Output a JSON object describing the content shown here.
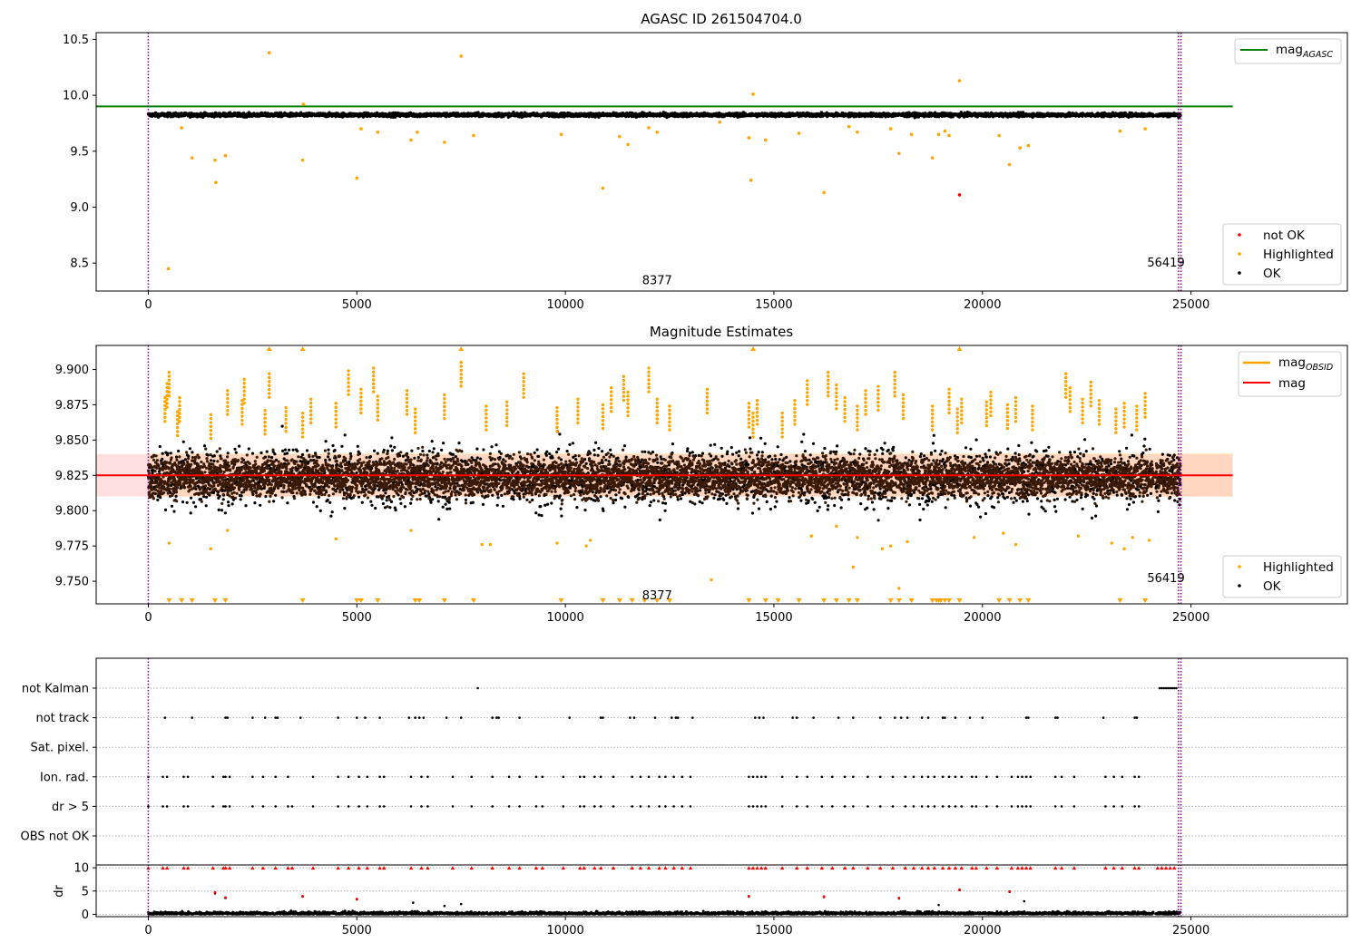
{
  "chart_data": [
    {
      "type": "scatter",
      "title": "AGASC ID 261504704.0",
      "xlabel": "",
      "ylabel": "",
      "xlim": [
        -1250,
        28750
      ],
      "ylim": [
        8.25,
        10.56
      ],
      "xticks": [
        0,
        5000,
        10000,
        15000,
        20000,
        25000
      ],
      "xtick_labels": [
        "0",
        "5000",
        "10000",
        "15000",
        "20000",
        "25000"
      ],
      "yticks": [
        8.5,
        9.0,
        9.5,
        10.0,
        10.5
      ],
      "ytick_labels": [
        "8.5",
        "9.0",
        "9.5",
        "10.0",
        "10.5"
      ],
      "grid": false,
      "legend_upper": {
        "position": "top-right",
        "entries": [
          {
            "label_main": "mag",
            "label_sub": "AGASC",
            "color": "#008000",
            "style": "line"
          }
        ]
      },
      "legend_lower": {
        "position": "bottom-right",
        "entries": [
          {
            "label": "not OK",
            "color": "#ff0000",
            "style": "dot"
          },
          {
            "label": "Highlighted",
            "color": "#ffa500",
            "style": "dot"
          },
          {
            "label": "OK",
            "color": "#000000",
            "style": "dot"
          }
        ]
      },
      "annotations": [
        {
          "text": "8377",
          "x": 12200,
          "y": 8.35
        },
        {
          "text": "56419",
          "x": 24400,
          "y": 8.51
        }
      ],
      "vlines": [
        {
          "x": 0,
          "color": "#800080",
          "style": "dotted"
        },
        {
          "x": 24700,
          "color": "#800080",
          "style": "dotted"
        },
        {
          "x": 24760,
          "color": "#800080",
          "style": "dotted"
        }
      ],
      "reference_line": {
        "name": "mag AGASC",
        "value": 9.9,
        "x_range": [
          -1250,
          26000
        ],
        "color": "#008000"
      },
      "ok_band": {
        "center": 9.825,
        "spread": 0.018,
        "x_ranges": [
          [
            0,
            24100
          ],
          [
            24150,
            24750
          ]
        ]
      },
      "highlighted_points": {
        "x": [
          480,
          800,
          1050,
          1600,
          1620,
          1850,
          2900,
          3700,
          3720,
          5000,
          5100,
          5500,
          6300,
          6450,
          7100,
          7500,
          7800,
          9900,
          10900,
          11300,
          11500,
          12000,
          12200,
          13700,
          14400,
          14450,
          14500,
          14800,
          15600,
          16200,
          16800,
          17000,
          17800,
          18000,
          18300,
          18800,
          18950,
          19100,
          19200,
          19450,
          20400,
          20650,
          20900,
          21100,
          23300,
          23900
        ],
        "y": [
          8.45,
          9.71,
          9.44,
          9.42,
          9.22,
          9.46,
          10.38,
          9.42,
          9.92,
          9.26,
          9.7,
          9.67,
          9.6,
          9.67,
          9.58,
          10.35,
          9.64,
          9.65,
          9.17,
          9.63,
          9.56,
          9.71,
          9.67,
          9.76,
          9.62,
          9.24,
          10.01,
          9.6,
          9.66,
          9.13,
          9.72,
          9.67,
          9.7,
          9.48,
          9.65,
          9.44,
          9.65,
          9.68,
          9.64,
          10.13,
          9.64,
          9.38,
          9.53,
          9.55,
          9.68,
          9.7
        ]
      },
      "not_ok_points": {
        "x": [
          19450
        ],
        "y": [
          9.11
        ]
      }
    },
    {
      "type": "scatter",
      "title": "Magnitude Estimates",
      "xlabel": "",
      "ylabel": "",
      "xlim": [
        -1250,
        28750
      ],
      "ylim": [
        9.734,
        9.917
      ],
      "xticks": [
        0,
        5000,
        10000,
        15000,
        20000,
        25000
      ],
      "xtick_labels": [
        "0",
        "5000",
        "10000",
        "15000",
        "20000",
        "25000"
      ],
      "yticks": [
        9.75,
        9.775,
        9.8,
        9.825,
        9.85,
        9.875,
        9.9
      ],
      "ytick_labels": [
        "9.750",
        "9.775",
        "9.800",
        "9.825",
        "9.850",
        "9.875",
        "9.900"
      ],
      "grid": false,
      "legend_upper": {
        "position": "top-right",
        "entries": [
          {
            "label_main": "mag",
            "label_sub": "OBSID",
            "color": "#ffa500",
            "style": "line"
          },
          {
            "label_main": "mag",
            "label_sub": "",
            "color": "#ff0000",
            "style": "line"
          }
        ]
      },
      "legend_lower": {
        "position": "bottom-right",
        "entries": [
          {
            "label": "Highlighted",
            "color": "#ffa500",
            "style": "dot"
          },
          {
            "label": "OK",
            "color": "#000000",
            "style": "dot"
          }
        ]
      },
      "annotations": [
        {
          "text": "8377",
          "x": 12200,
          "y": 9.7405
        },
        {
          "text": "56419",
          "x": 24400,
          "y": 9.7525
        }
      ],
      "vlines": [
        {
          "x": 0,
          "color": "#800080",
          "style": "dotted"
        },
        {
          "x": 24700,
          "color": "#800080",
          "style": "dotted"
        },
        {
          "x": 24760,
          "color": "#800080",
          "style": "dotted"
        }
      ],
      "mag_line": {
        "value": 9.825,
        "x_range": [
          -1250,
          26000
        ],
        "color": "#ff0000"
      },
      "mag_band": {
        "lo": 9.81,
        "hi": 9.84,
        "x_range": [
          -1250,
          26000
        ]
      },
      "obsid_band": {
        "lo": 9.81,
        "hi": 9.841,
        "x_range": [
          0,
          26000
        ]
      },
      "dense_band": {
        "center": 9.824,
        "half_width": 0.0155,
        "color": "#3a1a06",
        "x_ranges": [
          [
            0,
            24100
          ],
          [
            24150,
            24750
          ]
        ]
      },
      "scatter_spread": {
        "outer_lo": 9.79,
        "outer_hi": 9.866
      },
      "highlighted_upper_x": [
        400,
        450,
        500,
        700,
        750,
        1500,
        1900,
        2250,
        2300,
        2800,
        2900,
        3300,
        3700,
        3900,
        4500,
        4800,
        5100,
        5400,
        5500,
        6200,
        6400,
        7100,
        7500,
        8100,
        8600,
        9000,
        9800,
        10300,
        10900,
        11100,
        11400,
        11500,
        12000,
        12200,
        12500,
        13400,
        14400,
        14500,
        14600,
        15200,
        15500,
        15800,
        16300,
        16500,
        16700,
        17000,
        17200,
        17500,
        17900,
        18100,
        18800,
        19200,
        19400,
        19500,
        20100,
        20200,
        20600,
        20800,
        21200,
        22000,
        22100,
        22400,
        22600,
        22800,
        23200,
        23400,
        23700,
        23900
      ],
      "highlighted_upper_y": [
        9.88,
        9.89,
        9.898,
        9.87,
        9.88,
        9.868,
        9.885,
        9.878,
        9.893,
        9.871,
        9.897,
        9.873,
        9.869,
        9.879,
        9.876,
        9.899,
        9.886,
        9.901,
        9.881,
        9.885,
        9.872,
        9.882,
        9.905,
        9.874,
        9.877,
        9.897,
        9.873,
        9.879,
        9.875,
        9.887,
        9.895,
        9.884,
        9.901,
        9.879,
        9.874,
        9.886,
        9.876,
        9.869,
        9.878,
        9.869,
        9.878,
        9.892,
        9.898,
        9.889,
        9.88,
        9.874,
        9.885,
        9.888,
        9.898,
        9.882,
        9.874,
        9.886,
        9.872,
        9.879,
        9.877,
        9.884,
        9.875,
        9.88,
        9.874,
        9.897,
        9.887,
        9.879,
        9.891,
        9.878,
        9.872,
        9.876,
        9.874,
        9.883
      ],
      "highlighted_lower_x": [
        500,
        1500,
        1900,
        4500,
        6300,
        8000,
        8200,
        9800,
        10500,
        10600,
        13500,
        15900,
        16500,
        16900,
        17000,
        17600,
        17800,
        18000,
        18200,
        19800,
        20500,
        20800,
        22300,
        23100,
        23400,
        23600,
        24000
      ],
      "highlighted_lower_y": [
        9.777,
        9.773,
        9.786,
        9.78,
        9.786,
        9.776,
        9.776,
        9.777,
        9.775,
        9.779,
        9.751,
        9.782,
        9.789,
        9.76,
        9.781,
        9.773,
        9.775,
        9.745,
        9.778,
        9.781,
        9.784,
        9.776,
        9.782,
        9.777,
        9.773,
        9.781,
        9.779
      ],
      "clipped_top_x": [
        2900,
        3700,
        7500,
        14500,
        19450
      ],
      "clipped_bottom_x": [
        500,
        800,
        1050,
        1600,
        1850,
        3700,
        5000,
        5100,
        5500,
        6400,
        6500,
        7100,
        7800,
        9900,
        10900,
        11300,
        11600,
        11900,
        12200,
        12500,
        14400,
        14800,
        15100,
        15600,
        16200,
        16500,
        16800,
        17000,
        17800,
        18000,
        18300,
        18800,
        18900,
        18950,
        19000,
        19100,
        19200,
        19450,
        20400,
        20650,
        20900,
        21100,
        23300,
        23900
      ]
    },
    {
      "type": "scatter",
      "title": "",
      "xlabel": "",
      "ylabel": "dr",
      "xlim": [
        -1250,
        28750
      ],
      "xticks": [
        0,
        5000,
        10000,
        15000,
        20000,
        25000
      ],
      "xtick_labels": [
        "0",
        "5000",
        "10000",
        "15000",
        "20000",
        "25000"
      ],
      "flag_rows": [
        "not Kalman",
        "not track",
        "Sat. pixel.",
        "Ion. rad.",
        "dr > 5",
        "OBS not OK"
      ],
      "dr_ylim": [
        -0.5,
        10.6
      ],
      "dr_yticks": [
        0,
        5,
        10
      ],
      "dr_ytick_labels": [
        "0",
        "5",
        "10"
      ],
      "grid": "horizontal dotted",
      "vlines": [
        {
          "x": 0,
          "color": "#800080",
          "style": "dotted"
        },
        {
          "x": 24700,
          "color": "#800080",
          "style": "dotted"
        },
        {
          "x": 24760,
          "color": "#800080",
          "style": "dotted"
        }
      ],
      "not_kalman_x": [
        7900,
        24250,
        24300,
        24350,
        24400,
        24450,
        24500,
        24550,
        24600,
        24650
      ],
      "not_track_x": [
        400,
        1050,
        1850,
        1900,
        2500,
        2800,
        3050,
        3100,
        3650,
        4550,
        5000,
        5200,
        5550,
        6250,
        6400,
        6500,
        6600,
        7150,
        7500,
        8250,
        8350,
        8400,
        8900,
        10100,
        10850,
        10900,
        11550,
        11650,
        12150,
        12550,
        12650,
        12700,
        13050,
        14550,
        14650,
        14750,
        15450,
        15550,
        15950,
        16550,
        16900,
        17550,
        17900,
        18050,
        18200,
        18550,
        18700,
        19050,
        19100,
        19350,
        19700,
        20000,
        21050,
        21100,
        21750,
        21800,
        22900,
        23650,
        23700
      ],
      "ion_rad_x": [
        0,
        350,
        450,
        850,
        950,
        1550,
        1800,
        1850,
        1950,
        2500,
        2750,
        3050,
        3350,
        3950,
        4550,
        4800,
        5050,
        5250,
        5550,
        5650,
        6300,
        6550,
        6700,
        7300,
        7750,
        8250,
        8650,
        8900,
        9300,
        9450,
        9950,
        10350,
        10450,
        10700,
        10850,
        11150,
        11600,
        11800,
        12000,
        12250,
        12400,
        12600,
        12800,
        13000,
        14400,
        14500,
        14600,
        14700,
        14800,
        15200,
        15550,
        15800,
        16150,
        16400,
        16700,
        16900,
        17250,
        17550,
        17850,
        18150,
        18350,
        18550,
        18700,
        18850,
        19050,
        19200,
        19350,
        19500,
        19750,
        19850,
        20100,
        20350,
        20700,
        20850,
        20950,
        21050,
        21150,
        21750,
        21900,
        22200,
        22950,
        23150,
        23350,
        23650,
        23750
      ],
      "dr5_x": [
        0,
        350,
        450,
        850,
        950,
        1550,
        1800,
        1850,
        1950,
        2500,
        2750,
        3050,
        3350,
        3450,
        3950,
        4550,
        4800,
        5050,
        5250,
        5550,
        5650,
        6300,
        6550,
        6700,
        7300,
        7750,
        8250,
        8650,
        8900,
        9300,
        9450,
        9950,
        10350,
        10450,
        10700,
        10850,
        11150,
        11600,
        11800,
        12000,
        12250,
        12400,
        12600,
        12800,
        13000,
        14400,
        14500,
        14600,
        14700,
        14800,
        15200,
        15550,
        15800,
        16150,
        16400,
        16700,
        16900,
        17250,
        17550,
        17850,
        18150,
        18350,
        18550,
        18700,
        18850,
        19050,
        19200,
        19350,
        19500,
        19750,
        19850,
        20100,
        20350,
        20700,
        20850,
        20950,
        21050,
        21150,
        21750,
        21900,
        22200,
        22950,
        23150,
        23350,
        23650,
        23750
      ],
      "dr_points_x": [
        1600,
        1850,
        3700,
        5000,
        6350,
        7100,
        7500,
        14400,
        16200,
        18000,
        18950,
        19450,
        20650,
        21000
      ],
      "dr_points_y": [
        4.5,
        3.5,
        3.8,
        3.2,
        2.5,
        1.8,
        2.2,
        3.8,
        3.7,
        3.4,
        2.0,
        5.2,
        4.8,
        2.8
      ],
      "dr_red_points_x": [
        1600,
        1850,
        3700,
        5000,
        14400,
        16200,
        18000,
        19450,
        20650
      ],
      "dr_red_points_y": [
        4.7,
        3.6,
        3.9,
        3.3,
        3.9,
        3.8,
        3.5,
        5.3,
        4.9
      ],
      "dr_high_x": [
        0,
        350,
        450,
        850,
        950,
        1550,
        1800,
        1850,
        1950,
        2500,
        2750,
        3050,
        3350,
        3450,
        3950,
        4550,
        4800,
        5050,
        5250,
        5550,
        5650,
        6300,
        6550,
        6700,
        7300,
        7750,
        8250,
        8650,
        8900,
        9300,
        9450,
        9950,
        10350,
        10450,
        10700,
        10850,
        11150,
        11600,
        11800,
        12000,
        12250,
        12400,
        12600,
        12800,
        13000,
        14400,
        14500,
        14600,
        14700,
        14800,
        15200,
        15550,
        15800,
        16150,
        16400,
        16700,
        16900,
        17250,
        17550,
        17850,
        18150,
        18350,
        18550,
        18700,
        18850,
        19050,
        19200,
        19350,
        19500,
        19750,
        19850,
        20100,
        20350,
        20700,
        20850,
        20950,
        21050,
        21150,
        21750,
        21900,
        22200,
        22950,
        23150,
        23350,
        23650,
        23750,
        24200,
        24300,
        24400,
        24500,
        24600
      ],
      "dr_base": {
        "lo": 0,
        "hi": 0.7,
        "x_ranges": [
          [
            0,
            24100
          ],
          [
            24150,
            24750
          ]
        ]
      }
    }
  ]
}
